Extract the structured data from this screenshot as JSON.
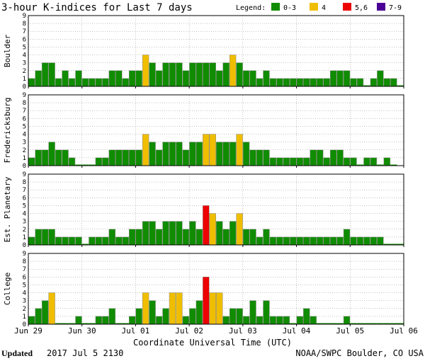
{
  "chart_data": {
    "type": "bar",
    "title": "3-hour K-indices for Last 7 days",
    "legend": {
      "label": "Legend:",
      "entries": [
        {
          "label": "0-3",
          "color": "#108C00"
        },
        {
          "label": "4",
          "color": "#F0BE00"
        },
        {
          "label": "5,6",
          "color": "#EC0000"
        },
        {
          "label": "7-9",
          "color": "#4B0096"
        }
      ]
    },
    "y_ticks": [
      "0",
      "1",
      "2",
      "3",
      "4",
      "5",
      "6",
      "7",
      "8",
      "9"
    ],
    "ylim": [
      0,
      9
    ],
    "x_ticks": [
      "Jun 29",
      "Jun 30",
      "Jul 01",
      "Jul 02",
      "Jul 03",
      "Jul 04",
      "Jul 05",
      "Jul 06"
    ],
    "xlabel": "Coordinate Universal Time (UTC)",
    "panels": [
      {
        "name": "Boulder",
        "values": [
          1,
          2,
          3,
          3,
          1,
          2,
          1,
          2,
          1,
          1,
          1,
          1,
          2,
          2,
          1,
          2,
          2,
          4,
          3,
          2,
          3,
          3,
          3,
          2,
          3,
          3,
          3,
          3,
          2,
          3,
          4,
          3,
          2,
          2,
          1,
          2,
          1,
          1,
          1,
          1,
          1,
          1,
          1,
          1,
          1,
          2,
          2,
          2,
          1,
          1,
          0,
          1,
          2,
          1,
          1,
          0
        ]
      },
      {
        "name": "Fredericksburg",
        "values": [
          1,
          2,
          2,
          3,
          2,
          2,
          1,
          0,
          0,
          0,
          1,
          1,
          2,
          2,
          2,
          2,
          2,
          4,
          3,
          2,
          3,
          3,
          3,
          2,
          3,
          3,
          4,
          4,
          3,
          3,
          3,
          4,
          3,
          2,
          2,
          2,
          1,
          1,
          1,
          1,
          1,
          1,
          2,
          2,
          1,
          2,
          2,
          1,
          1,
          0,
          1,
          1,
          0,
          1,
          0
        ]
      },
      {
        "name": "Est. Planetary",
        "values": [
          1,
          2,
          2,
          2,
          1,
          1,
          1,
          1,
          0,
          1,
          1,
          1,
          2,
          1,
          1,
          2,
          2,
          3,
          3,
          2,
          3,
          3,
          3,
          2,
          3,
          2,
          5,
          4,
          3,
          2,
          3,
          4,
          2,
          2,
          1,
          2,
          1,
          1,
          1,
          1,
          1,
          1,
          1,
          1,
          1,
          1,
          1,
          2,
          1,
          1,
          1,
          1,
          1,
          0,
          0,
          0
        ]
      },
      {
        "name": "College",
        "values": [
          1,
          2,
          3,
          4,
          0,
          0,
          0,
          1,
          0,
          0,
          1,
          1,
          2,
          0,
          0,
          1,
          2,
          4,
          3,
          1,
          2,
          4,
          4,
          1,
          2,
          3,
          6,
          4,
          4,
          1,
          2,
          2,
          1,
          3,
          1,
          3,
          1,
          1,
          1,
          0,
          1,
          2,
          1,
          0,
          0,
          0,
          0,
          1,
          0,
          0,
          0,
          0,
          0,
          0,
          0,
          0
        ]
      }
    ]
  },
  "footer": {
    "updated_label": "Updated",
    "updated_value": "2017 Jul  5 2130",
    "source": "NOAA/SWPC Boulder, CO USA"
  }
}
